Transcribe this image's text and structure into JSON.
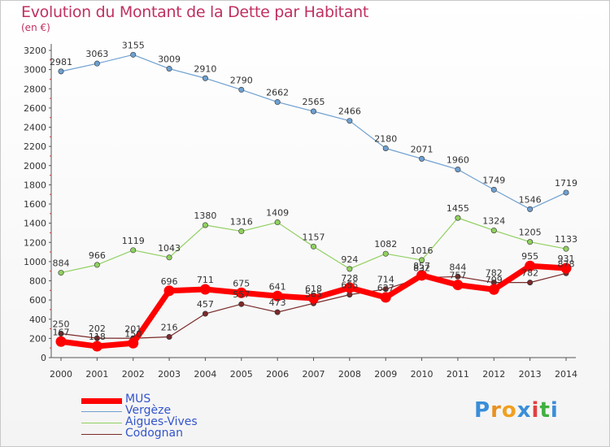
{
  "header": {
    "title": "Evolution du Montant de la Dette par Habitant",
    "subtitle": "(en €)"
  },
  "logo": {
    "text": "Proxiti"
  },
  "chart_data": {
    "type": "line",
    "title": "Evolution du Montant de la Dette par Habitant",
    "subtitle": "(en €)",
    "x": [
      2000,
      2001,
      2002,
      2003,
      2004,
      2005,
      2006,
      2007,
      2008,
      2009,
      2010,
      2011,
      2012,
      2013,
      2014
    ],
    "ylim": [
      0,
      3200
    ],
    "yticks": [
      0,
      200,
      400,
      600,
      800,
      1000,
      1200,
      1400,
      1600,
      1800,
      2000,
      2200,
      2400,
      2600,
      2800,
      3000,
      3200
    ],
    "grid": false,
    "legend_position": "bottom-left",
    "series": [
      {
        "name": "MUS",
        "color": "#ff0000",
        "values": [
          167,
          118,
          150,
          696,
          711,
          675,
          641,
          618,
          728,
          627,
          857,
          757,
          709,
          955,
          931
        ],
        "labels": [
          "167",
          "118",
          "150",
          "696",
          "711",
          "675",
          "641",
          "618",
          "728",
          "627",
          "857",
          "757",
          "709",
          "955",
          "931"
        ]
      },
      {
        "name": "Vergèze",
        "color": "#6fa0d0",
        "values": [
          2981,
          3063,
          3155,
          3009,
          2910,
          2790,
          2662,
          2565,
          2466,
          2180,
          2071,
          1960,
          1749,
          1546,
          1719
        ],
        "labels": [
          "2981",
          "3063",
          "3155",
          "3009",
          "2910",
          "2790",
          "2662",
          "2565",
          "2466",
          "2180",
          "2071",
          "1960",
          "1749",
          "1546",
          "1719"
        ]
      },
      {
        "name": "Aigues-Vives",
        "color": "#90d060",
        "values": [
          884,
          966,
          1119,
          1043,
          1380,
          1316,
          1409,
          1157,
          924,
          1082,
          1016,
          1455,
          1324,
          1205,
          1133
        ],
        "labels": [
          "884",
          "966",
          "1119",
          "1043",
          "1380",
          "1316",
          "1409",
          "1157",
          "924",
          "1082",
          "1016",
          "1455",
          "1324",
          "1205",
          "1133"
        ]
      },
      {
        "name": "Codognan",
        "color": "#7a2a2a",
        "values": [
          250,
          202,
          201,
          216,
          457,
          557,
          473,
          565,
          655,
          714,
          832,
          844,
          782,
          782,
          878
        ],
        "labels": [
          "250",
          "202",
          "201",
          "216",
          "457",
          "557",
          "473",
          "565",
          "655",
          "714",
          "832",
          "844",
          "782",
          "782",
          "878"
        ]
      }
    ]
  }
}
